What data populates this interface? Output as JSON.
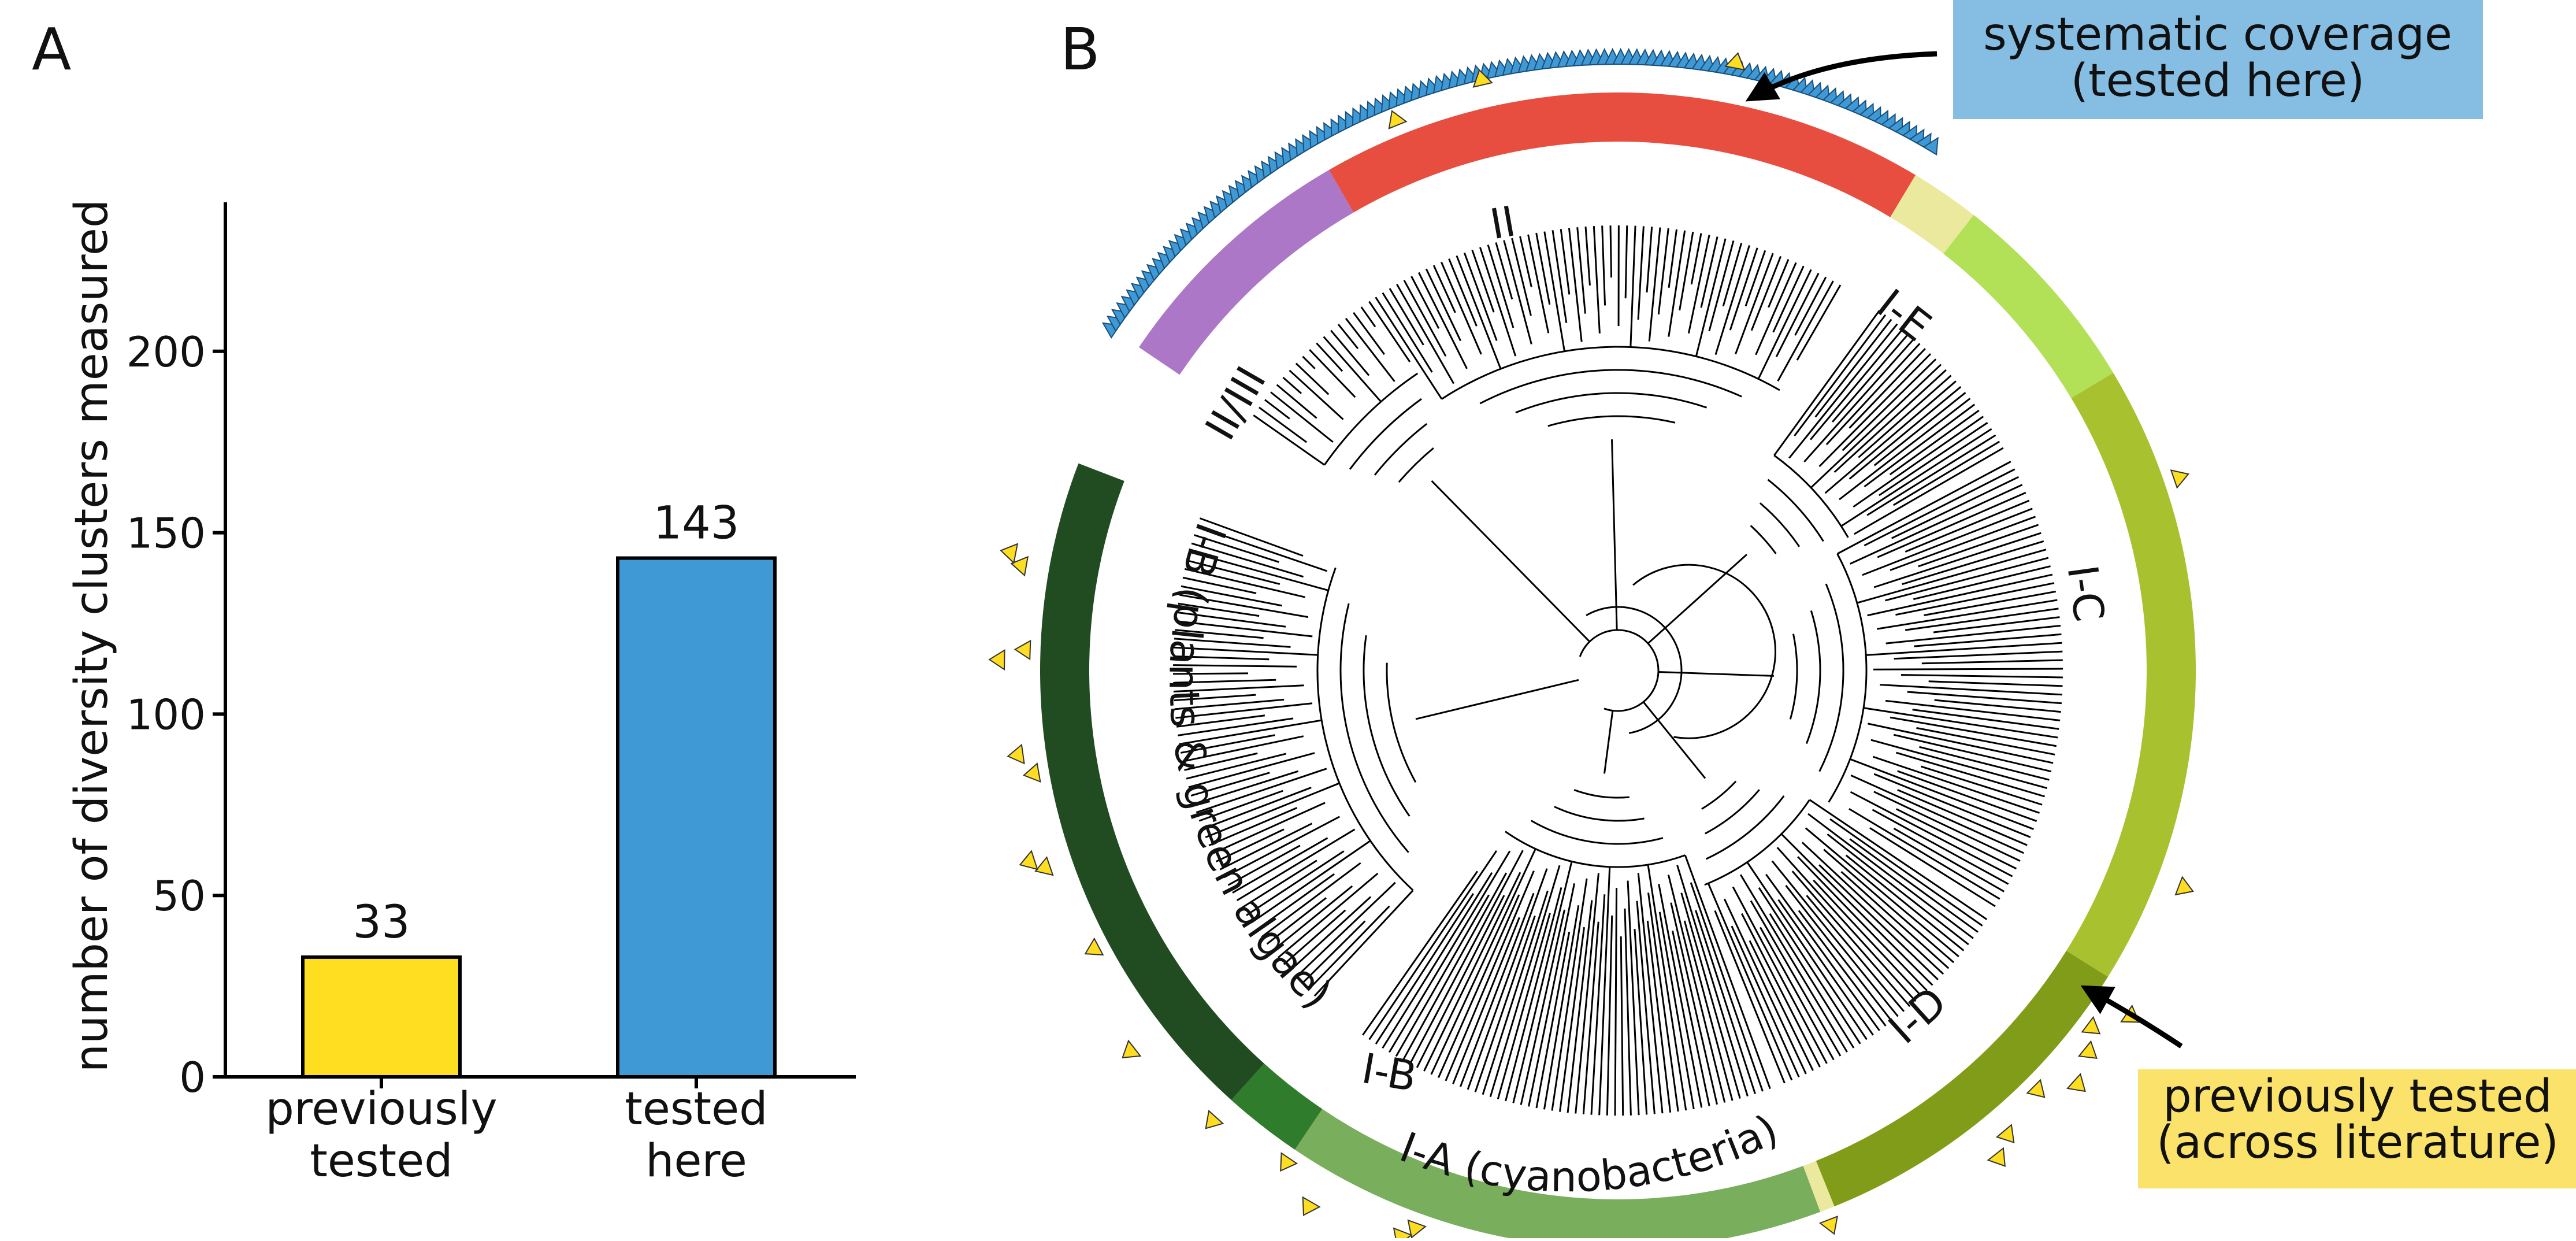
{
  "panels": {
    "a_label": "A",
    "b_label": "B"
  },
  "chart_data": [
    {
      "type": "bar",
      "categories": [
        [
          "previously",
          "tested"
        ],
        [
          "tested",
          "here"
        ]
      ],
      "values": [
        33,
        143
      ],
      "data_labels": [
        "33",
        "143"
      ],
      "colors": [
        "#FFDE21",
        "#3F99D5"
      ],
      "ylabel": "number of diversity clusters measured",
      "xlabel": "",
      "ylim": [
        0,
        240
      ],
      "yticks": [
        0,
        50,
        100,
        150,
        200
      ],
      "grid": false
    },
    {
      "type": "circular-phylogenetic-tree",
      "clades": [
        {
          "label": "II",
          "color": "#E84E3F"
        },
        {
          "label": "II/III",
          "color": "#AB77C6"
        },
        {
          "label": "I-E",
          "color": "#B2E056"
        },
        {
          "label": "I-C",
          "color": "#A8C22F"
        },
        {
          "label": "I-D",
          "color": "#809C18"
        },
        {
          "label": "I-A (cyanobacteria)",
          "color": "#79AE5C"
        },
        {
          "label": "I-B",
          "color": "#2F7C2D"
        },
        {
          "label": "I-B (plants & green algae)",
          "color": "#214C22"
        }
      ],
      "annotations": {
        "systematic": "systematic coverage (tested here)",
        "previous": "previously tested (across literature)"
      }
    }
  ],
  "callouts": {
    "systematic": {
      "line1": "systematic coverage",
      "line2": "(tested here)",
      "bg": "#85BDE3"
    },
    "previous": {
      "line1": "previously tested",
      "line2": "(across literature)",
      "bg": "#FBE26A"
    }
  },
  "colors": {
    "axis": "#000000",
    "tested_marker": "#3F99D5",
    "previous_marker": "#FFDE21",
    "minor_band": "#EBE99E"
  }
}
